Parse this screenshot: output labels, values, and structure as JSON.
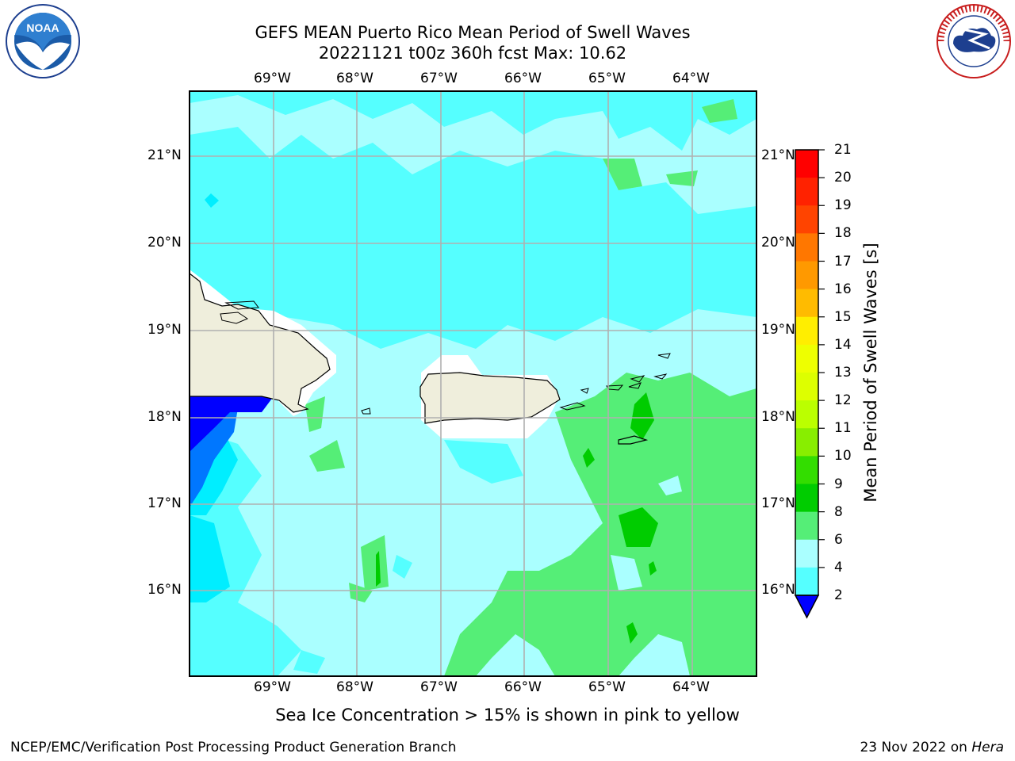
{
  "title_line1": "GEFS MEAN Puerto Rico Mean Period of Swell Waves",
  "title_line2": "20221121 t00z 360h fcst   Max: 10.62",
  "lon_labels": [
    "69°W",
    "68°W",
    "67°W",
    "66°W",
    "65°W",
    "64°W"
  ],
  "lat_labels": [
    "21°N",
    "20°N",
    "19°N",
    "18°N",
    "17°N",
    "16°N"
  ],
  "colorbar": {
    "title": "Mean Period of Swell Waves [s]",
    "ticks": [
      "21",
      "20",
      "19",
      "18",
      "17",
      "16",
      "15",
      "14",
      "13",
      "12",
      "11",
      "10",
      "9",
      "8",
      "6",
      "4",
      "2"
    ],
    "colors": [
      "#ff0000",
      "#ff2200",
      "#ff4400",
      "#ff7700",
      "#ff9900",
      "#ffbb00",
      "#ffee00",
      "#eeff00",
      "#ddff00",
      "#bbff00",
      "#88ee00",
      "#33dd00",
      "#00cc00",
      "#55ee77",
      "#aaffff",
      "#55ffff",
      "#00eeff",
      "#0077ff",
      "#0000ff"
    ]
  },
  "bottom_note": "Sea Ice Concentration > 15% is shown in pink to yellow",
  "footer_left": "NCEP/EMC/Verification Post Processing Product Generation Branch",
  "footer_right_date": "23 Nov 2022 on ",
  "footer_right_host": "Hera",
  "logos": {
    "left": "NOAA",
    "right": "NATIONAL WEATHER SERVICE"
  }
}
